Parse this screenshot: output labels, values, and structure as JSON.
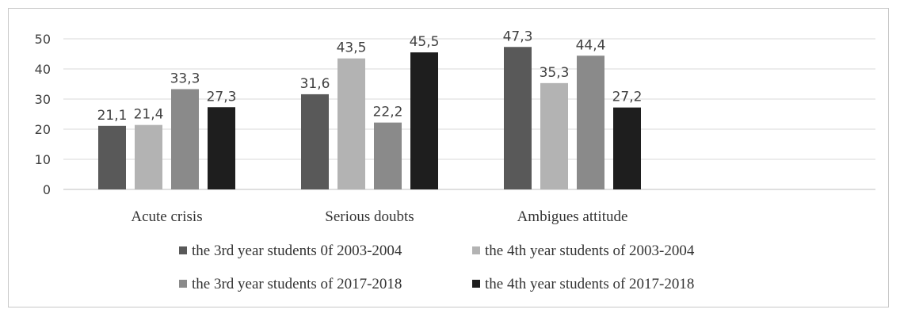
{
  "chart_data": {
    "type": "bar",
    "categories": [
      "Acute crisis",
      "Serious doubts",
      "Ambigues attitude"
    ],
    "series": [
      {
        "name": "the 3rd year students 0f 2003-2004",
        "values": [
          21.1,
          31.6,
          47.3
        ],
        "labels": [
          "21,1",
          "31,6",
          "47,3"
        ],
        "color": "#595959"
      },
      {
        "name": "the 4th year students of 2003-2004",
        "values": [
          21.4,
          43.5,
          35.3
        ],
        "labels": [
          "21,4",
          "43,5",
          "35,3"
        ],
        "color": "#b3b3b3"
      },
      {
        "name": "the 3rd year students of 2017-2018",
        "values": [
          33.3,
          22.2,
          44.4
        ],
        "labels": [
          "33,3",
          "22,2",
          "44,4"
        ],
        "color": "#8a8a8a"
      },
      {
        "name": "the 4th year students of 2017-2018",
        "values": [
          27.3,
          45.5,
          27.2
        ],
        "labels": [
          "27,3",
          "45,5",
          "27,2"
        ],
        "color": "#1e1e1e"
      }
    ],
    "yticks": [
      "0",
      "10",
      "20",
      "30",
      "40",
      "50"
    ],
    "ylim": [
      0,
      50
    ],
    "grid": true,
    "legend_position": "bottom",
    "title": "",
    "xlabel": "",
    "ylabel": ""
  }
}
